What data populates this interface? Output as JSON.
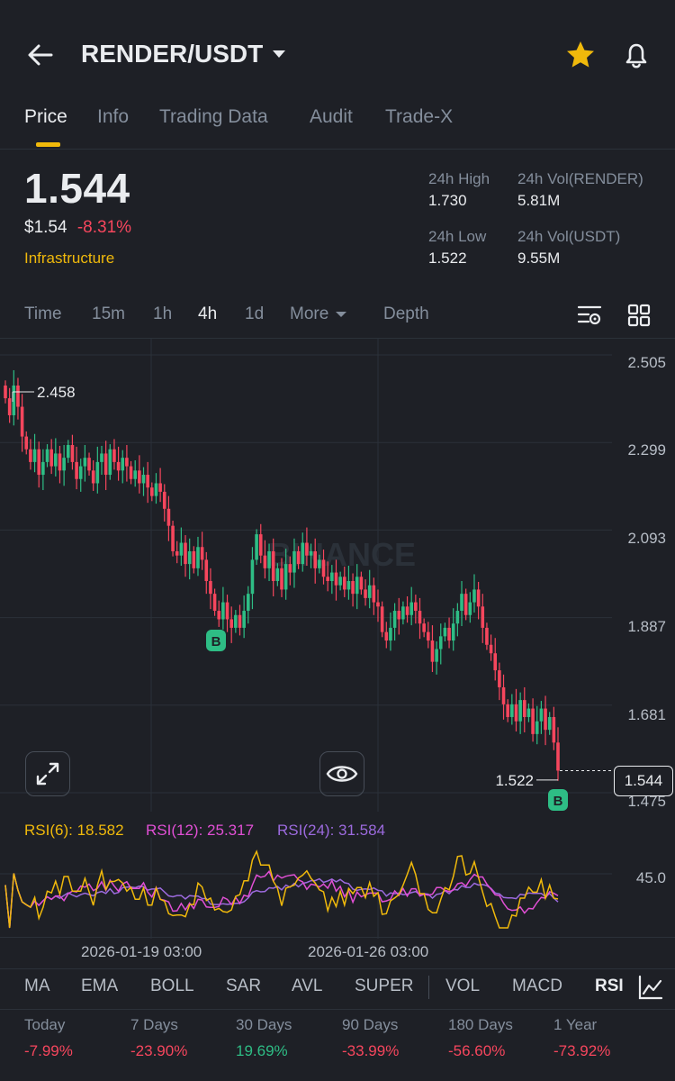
{
  "header": {
    "pair": "RENDER/USDT"
  },
  "tabs": [
    "Price",
    "Info",
    "Trading Data",
    "Audit",
    "Trade-X"
  ],
  "ticker": {
    "last_price": "1.544",
    "usd_price": "$1.54",
    "change": "-8.31%",
    "category": "Infrastructure",
    "high_label": "24h High",
    "high": "1.730",
    "vol_base_label": "24h Vol(RENDER)",
    "vol_base": "5.81M",
    "low_label": "24h Low",
    "low": "1.522",
    "vol_quote_label": "24h Vol(USDT)",
    "vol_quote": "9.55M"
  },
  "intervals": {
    "time": "Time",
    "m15": "15m",
    "h1": "1h",
    "h4": "4h",
    "d1": "1d",
    "more": "More",
    "depth": "Depth"
  },
  "chart": {
    "watermark": "BINANCE",
    "max_label": "2.458",
    "min_label": "1.522",
    "current_price": "1.544",
    "buy_marker": "B",
    "x_labels": [
      "2026-01-19 03:00",
      "2026-01-26 03:00"
    ],
    "rsi_axis_label": "45.0",
    "colors": {
      "up": "#2ebd85",
      "down": "#f6465d",
      "rsi6": "#f0b90b",
      "rsi12": "#e04fd4",
      "rsi24": "#9c6ade"
    }
  },
  "chart_data": {
    "type": "candlestick",
    "y_ticks": [
      2.505,
      2.299,
      2.093,
      1.887,
      1.681,
      1.475
    ],
    "ylim": [
      1.44,
      2.53
    ],
    "closes": [
      2.42,
      2.38,
      2.45,
      2.4,
      2.33,
      2.3,
      2.27,
      2.3,
      2.24,
      2.27,
      2.3,
      2.26,
      2.29,
      2.25,
      2.28,
      2.31,
      2.27,
      2.23,
      2.26,
      2.28,
      2.25,
      2.22,
      2.27,
      2.29,
      2.24,
      2.3,
      2.27,
      2.25,
      2.28,
      2.26,
      2.23,
      2.25,
      2.22,
      2.24,
      2.21,
      2.19,
      2.22,
      2.2,
      2.16,
      2.12,
      2.06,
      2.05,
      2.08,
      2.03,
      2.06,
      2.02,
      2.07,
      2.04,
      1.99,
      1.96,
      1.92,
      1.9,
      1.94,
      1.9,
      1.88,
      1.91,
      1.88,
      1.92,
      1.96,
      2.04,
      2.1,
      2.05,
      2.02,
      2.06,
      1.99,
      2.02,
      1.97,
      2.03,
      2.01,
      2.06,
      2.03,
      2.08,
      2.05,
      2.06,
      2.02,
      2.04,
      2.0,
      1.99,
      2.01,
      1.98,
      2.0,
      1.97,
      1.99,
      1.96,
      2.0,
      1.97,
      1.95,
      1.98,
      1.94,
      1.93,
      1.87,
      1.85,
      1.88,
      1.92,
      1.9,
      1.93,
      1.91,
      1.94,
      1.92,
      1.89,
      1.87,
      1.85,
      1.8,
      1.83,
      1.86,
      1.88,
      1.85,
      1.89,
      1.92,
      1.96,
      1.91,
      1.94,
      1.97,
      1.93,
      1.88,
      1.84,
      1.82,
      1.78,
      1.74,
      1.7,
      1.67,
      1.7,
      1.66,
      1.71,
      1.67,
      1.69,
      1.63,
      1.66,
      1.69,
      1.64,
      1.67,
      1.61,
      1.544
    ],
    "rsi": {
      "rsi6": 18.582,
      "rsi12": 25.317,
      "rsi24": 31.584
    }
  },
  "indicators": [
    "MA",
    "EMA",
    "BOLL",
    "SAR",
    "AVL",
    "SUPER",
    "VOL",
    "MACD",
    "RSI"
  ],
  "performance": [
    {
      "label": "Today",
      "value": "-7.99%"
    },
    {
      "label": "7 Days",
      "value": "-23.90%"
    },
    {
      "label": "30 Days",
      "value": "19.69%"
    },
    {
      "label": "90 Days",
      "value": "-33.99%"
    },
    {
      "label": "180 Days",
      "value": "-56.60%"
    },
    {
      "label": "1 Year",
      "value": "-73.92%"
    }
  ]
}
